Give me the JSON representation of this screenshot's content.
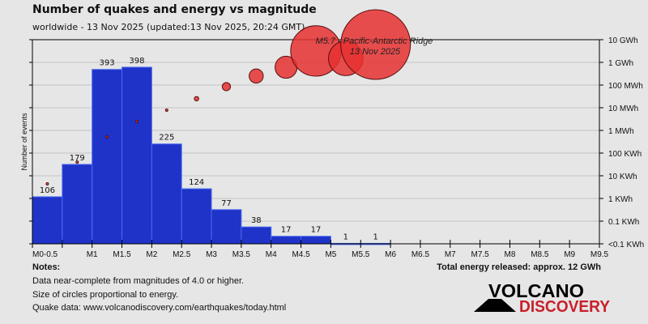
{
  "title": "Number of quakes and energy vs magnitude",
  "subtitle": "worldwide - 13 Nov 2025 (updated:13 Nov 2025, 20:24 GMT)",
  "notes": {
    "heading": "Notes:",
    "lines": [
      "Data near-complete from magnitudes of 4.0 or higher.",
      "Size of circles proportional to energy.",
      "Quake data: www.volcanodiscovery.com/earthquakes/today.html"
    ]
  },
  "total_energy": "Total energy released: approx. 12 GWh",
  "logo": {
    "line1": "VOLCANO",
    "line2": "DISCOVERY"
  },
  "colors": {
    "bar": "#1f33c8",
    "bar_edge": "#4a6cf0",
    "circle": "#e63030",
    "circle_edge": "#5a0f0f",
    "logo_red": "#c8202a"
  },
  "chart_data": {
    "type": "bar",
    "title": "Number of quakes and energy vs magnitude",
    "ylabel": "Number of events",
    "ylim": [
      0,
      460
    ],
    "x_tick_labels": [
      "M0-0.5",
      "",
      "M1",
      "M1.5",
      "M2",
      "M2.5",
      "M3",
      "M3.5",
      "M4",
      "M4.5",
      "M5",
      "M5.5",
      "M6",
      "M6.5",
      "M7",
      "M7.5",
      "M8",
      "M8.5",
      "M9",
      "M9.5"
    ],
    "categories": [
      "M0-0.5",
      "M0.5-1",
      "M1-1.5",
      "M1.5-2",
      "M2-2.5",
      "M2.5-3",
      "M3-3.5",
      "M3.5-4",
      "M4-4.5",
      "M4.5-5",
      "M5-5.5",
      "M5.5-6"
    ],
    "values": [
      106,
      179,
      393,
      398,
      225,
      124,
      77,
      38,
      17,
      17,
      1,
      1
    ],
    "energy_axis": {
      "scale": "log",
      "labels": [
        "<0.1 KWh",
        "0.1 KWh",
        "1 KWh",
        "10 KWh",
        "100 KWh",
        "1 MWh",
        "10 MWh",
        "100 MWh",
        "1 GWh",
        "10 GWh"
      ]
    },
    "energy_kwh": [
      4.4,
      40,
      520,
      2500,
      7800,
      25000,
      85000,
      250000,
      610000,
      3200000,
      1500000,
      6100000
    ],
    "annotation": {
      "line1": "M5.7 - Pacific-Antarctic Ridge",
      "line2": "13 Nov 2025"
    },
    "grid": true
  }
}
